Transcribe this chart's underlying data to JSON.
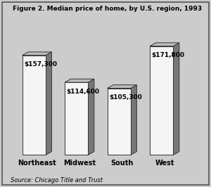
{
  "title": "Figure 2. Median price of home, by U.S. region, 1993",
  "categories": [
    "Northeast",
    "Midwest",
    "South",
    "West"
  ],
  "values": [
    157300,
    114600,
    105300,
    171800
  ],
  "labels": [
    "$157,300",
    "$114,600",
    "$105,300",
    "$171,800"
  ],
  "source": "Source: Chicago Title and Trust",
  "bar_face_color": "#f5f5f5",
  "bar_side_color": "#777777",
  "bar_top_color": "#bbbbbb",
  "background_color": "#cccccc",
  "plot_bg_color": "#dddddd",
  "border_color": "#333333",
  "ymax": 190000,
  "ymin": 0,
  "bar_width": 0.55
}
